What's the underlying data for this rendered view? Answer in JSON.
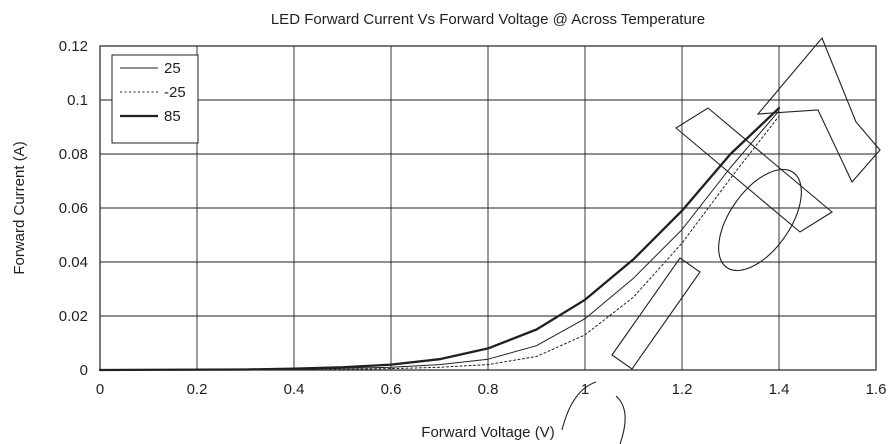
{
  "chart_data": {
    "type": "line",
    "title": "LED Forward Current Vs Forward Voltage @ Across Temperature",
    "xlabel": "Forward Voltage (V)",
    "ylabel": "Forward Current (A)",
    "xlim": [
      0,
      1.6
    ],
    "ylim": [
      0,
      0.12
    ],
    "x_ticks": [
      "0",
      "0.2",
      "0.4",
      "0.6",
      "0.8",
      "1",
      "1.2",
      "1.4",
      "1.6"
    ],
    "y_ticks": [
      "0",
      "0.02",
      "0.04",
      "0.06",
      "0.08",
      "0.1",
      "0.12"
    ],
    "grid": true,
    "legend_position": "top-left",
    "series": [
      {
        "name": "25",
        "line_style": "thin-solid",
        "x": [
          0,
          0.3,
          0.4,
          0.5,
          0.6,
          0.7,
          0.8,
          0.9,
          1.0,
          1.1,
          1.2,
          1.3,
          1.4
        ],
        "y": [
          0,
          0.0001,
          0.0003,
          0.0006,
          0.001,
          0.002,
          0.004,
          0.009,
          0.019,
          0.034,
          0.052,
          0.075,
          0.096
        ]
      },
      {
        "name": "-25",
        "line_style": "dotted",
        "x": [
          0,
          0.4,
          0.5,
          0.6,
          0.7,
          0.8,
          0.9,
          1.0,
          1.1,
          1.2,
          1.3,
          1.4
        ],
        "y": [
          0,
          0.0001,
          0.0002,
          0.0005,
          0.001,
          0.002,
          0.005,
          0.013,
          0.027,
          0.047,
          0.071,
          0.094
        ]
      },
      {
        "name": "85",
        "line_style": "thick-solid",
        "x": [
          0,
          0.3,
          0.4,
          0.5,
          0.6,
          0.7,
          0.8,
          0.9,
          1.0,
          1.1,
          1.2,
          1.3,
          1.4
        ],
        "y": [
          0,
          0.0002,
          0.0005,
          0.001,
          0.002,
          0.004,
          0.008,
          0.015,
          0.026,
          0.041,
          0.059,
          0.08,
          0.097
        ]
      }
    ]
  }
}
